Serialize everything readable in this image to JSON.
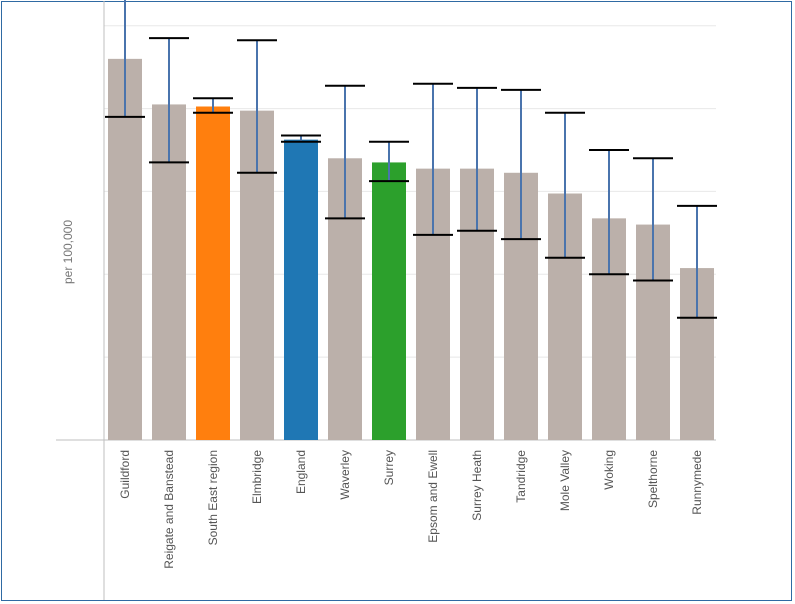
{
  "chart_data": {
    "type": "bar",
    "title": "",
    "xlabel": "",
    "ylabel": "per 100,000",
    "ylim": [
      0,
      105
    ],
    "grid": true,
    "legend": "none",
    "categories": [
      "Guildford",
      "Reigate and Banstead",
      "South East region",
      "Elmbridge",
      "England",
      "Waverley",
      "Surrey",
      "Epsom and Ewell",
      "Surrey Heath",
      "Tandridge",
      "Mole Valley",
      "Woking",
      "Spelthorne",
      "Runnymede"
    ],
    "values": [
      92,
      81,
      80.5,
      79.5,
      72.5,
      68,
      67,
      65.5,
      65.5,
      64.5,
      59.5,
      53.5,
      52,
      41.5
    ],
    "ci_lower": [
      78,
      67,
      79,
      64.5,
      72,
      53.5,
      62.5,
      49.5,
      50.5,
      48.5,
      44,
      40,
      38.5,
      29.5
    ],
    "ci_upper": [
      108,
      97,
      82.5,
      96.5,
      73.5,
      85.5,
      72,
      86,
      85,
      84.5,
      79,
      70,
      68,
      56.5
    ],
    "bar_colors": [
      "#bbb0aa",
      "#bbb0aa",
      "#ff7f0e",
      "#bbb0aa",
      "#1f77b4",
      "#bbb0aa",
      "#2ca02c",
      "#bbb0aa",
      "#bbb0aa",
      "#bbb0aa",
      "#bbb0aa",
      "#bbb0aa",
      "#bbb0aa",
      "#bbb0aa"
    ],
    "error_bar_color": "#4a74ad",
    "cap_color": "#000000",
    "grid_color": "#e8e8e8",
    "axis_color": "#bfbfbf",
    "frame_color": "#2f6aa3"
  }
}
